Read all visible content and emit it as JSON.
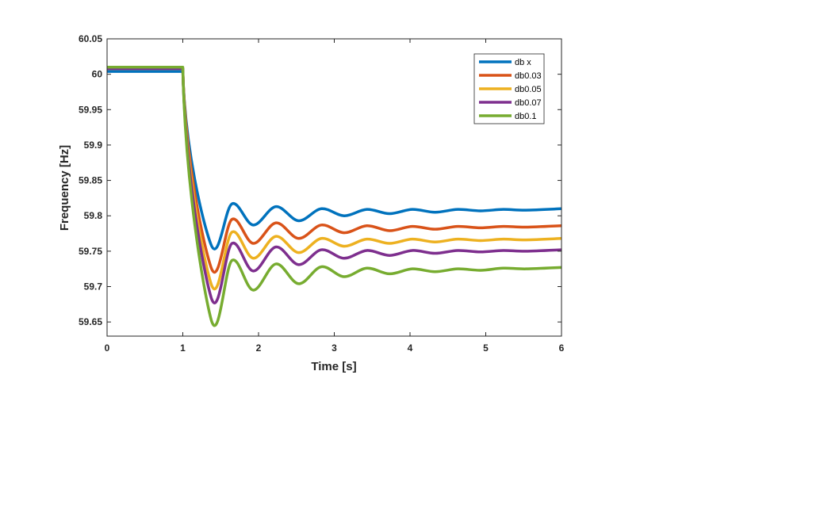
{
  "chart_data": {
    "type": "line",
    "xlabel": "Time [s]",
    "ylabel": "Frequency [Hz]",
    "xlim": [
      0,
      6
    ],
    "ylim": [
      59.63,
      60.05
    ],
    "xticks": [
      "0",
      "1",
      "2",
      "3",
      "4",
      "5",
      "6"
    ],
    "yticks": [
      "59.65",
      "59.7",
      "59.75",
      "59.8",
      "59.85",
      "59.9",
      "59.95",
      "60",
      "60.05"
    ],
    "grid": false,
    "legend_position": "top-right",
    "series": [
      {
        "name": "db x",
        "color": "#0072BD",
        "x": [
          0,
          1,
          1.37,
          1.65,
          1.93,
          2.23,
          2.53,
          2.83,
          3.13,
          3.43,
          3.73,
          4.03,
          4.33,
          4.63,
          4.93,
          5.23,
          5.53,
          6
        ],
        "y": [
          60.004,
          60.004,
          59.76,
          59.817,
          59.787,
          59.813,
          59.793,
          59.81,
          59.8,
          59.809,
          59.803,
          59.809,
          59.805,
          59.809,
          59.807,
          59.809,
          59.808,
          59.81
        ]
      },
      {
        "name": "db0.03",
        "color": "#D95319",
        "x": [
          0,
          1,
          1.37,
          1.65,
          1.93,
          2.23,
          2.53,
          2.83,
          3.13,
          3.43,
          3.73,
          4.03,
          4.33,
          4.63,
          4.93,
          5.23,
          5.53,
          6
        ],
        "y": [
          60.008,
          60.008,
          59.728,
          59.795,
          59.761,
          59.79,
          59.768,
          59.787,
          59.776,
          59.786,
          59.779,
          59.785,
          59.781,
          59.785,
          59.783,
          59.785,
          59.784,
          59.786
        ]
      },
      {
        "name": "db0.05",
        "color": "#EDB120",
        "x": [
          0,
          1,
          1.37,
          1.65,
          1.93,
          2.23,
          2.53,
          2.83,
          3.13,
          3.43,
          3.73,
          4.03,
          4.33,
          4.63,
          4.93,
          5.23,
          5.53,
          6
        ],
        "y": [
          60.008,
          60.008,
          59.705,
          59.777,
          59.74,
          59.771,
          59.748,
          59.768,
          59.757,
          59.767,
          59.761,
          59.767,
          59.763,
          59.767,
          59.765,
          59.767,
          59.766,
          59.768
        ]
      },
      {
        "name": "db0.07",
        "color": "#7E2F8E",
        "x": [
          0,
          1,
          1.37,
          1.65,
          1.93,
          2.23,
          2.53,
          2.83,
          3.13,
          3.43,
          3.73,
          4.03,
          4.33,
          4.63,
          4.93,
          5.23,
          5.53,
          6
        ],
        "y": [
          60.008,
          60.008,
          59.686,
          59.761,
          59.722,
          59.756,
          59.731,
          59.752,
          59.74,
          59.751,
          59.744,
          59.751,
          59.747,
          59.751,
          59.749,
          59.751,
          59.75,
          59.752
        ]
      },
      {
        "name": "db0.1",
        "color": "#77AC30",
        "x": [
          0,
          1,
          1.37,
          1.65,
          1.93,
          2.23,
          2.53,
          2.83,
          3.13,
          3.43,
          3.73,
          4.03,
          4.33,
          4.63,
          4.93,
          5.23,
          5.53,
          6
        ],
        "y": [
          60.01,
          60.01,
          59.655,
          59.737,
          59.695,
          59.732,
          59.704,
          59.728,
          59.714,
          59.726,
          59.718,
          59.725,
          59.721,
          59.725,
          59.723,
          59.726,
          59.725,
          59.727
        ]
      }
    ]
  }
}
